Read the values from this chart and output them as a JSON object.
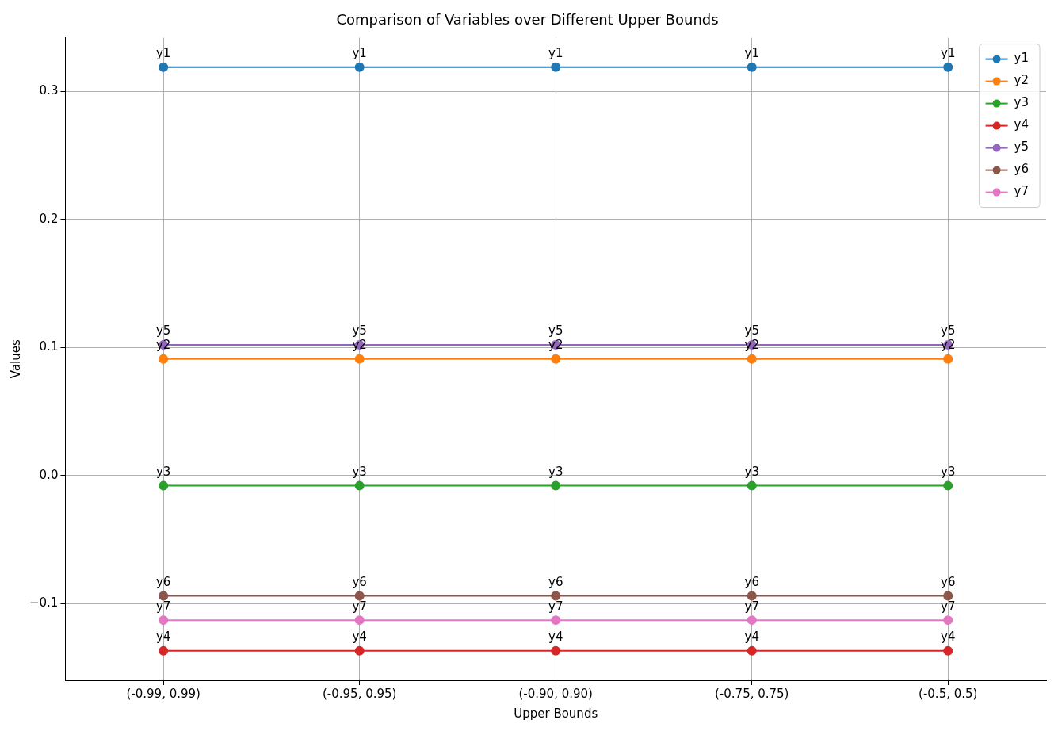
{
  "chart_data": {
    "type": "line",
    "title": "Comparison of Variables over Different Upper Bounds",
    "xlabel": "Upper Bounds",
    "ylabel": "Values",
    "categories": [
      "(-0.99, 0.99)",
      "(-0.95, 0.95)",
      "(-0.90, 0.90)",
      "(-0.75, 0.75)",
      "(-0.5, 0.5)"
    ],
    "series": [
      {
        "name": "y1",
        "color": "#1f77b4",
        "values": [
          0.319,
          0.319,
          0.319,
          0.319,
          0.319
        ]
      },
      {
        "name": "y2",
        "color": "#ff7f0e",
        "values": [
          0.091,
          0.091,
          0.091,
          0.091,
          0.091
        ]
      },
      {
        "name": "y3",
        "color": "#2ca02c",
        "values": [
          -0.008,
          -0.008,
          -0.008,
          -0.008,
          -0.008
        ]
      },
      {
        "name": "y4",
        "color": "#d62728",
        "values": [
          -0.137,
          -0.137,
          -0.137,
          -0.137,
          -0.137
        ]
      },
      {
        "name": "y5",
        "color": "#9467bd",
        "values": [
          0.102,
          0.102,
          0.102,
          0.102,
          0.102
        ]
      },
      {
        "name": "y6",
        "color": "#8c564b",
        "values": [
          -0.094,
          -0.094,
          -0.094,
          -0.094,
          -0.094
        ]
      },
      {
        "name": "y7",
        "color": "#e377c2",
        "values": [
          -0.113,
          -0.113,
          -0.113,
          -0.113,
          -0.113
        ]
      }
    ],
    "ylim": [
      -0.16,
      0.342
    ],
    "yticks": [
      {
        "value": -0.1,
        "label": "−0.1"
      },
      {
        "value": 0,
        "label": "0.0"
      },
      0.1,
      0.2,
      0.3
    ],
    "grid": true,
    "legend": "top right",
    "marker": "circle",
    "line_style": "solid",
    "annotations": [
      {
        "text": "y1",
        "x": "(-0.99, 0.99)",
        "y": 0.319
      },
      {
        "text": "y1",
        "x": "(-0.95, 0.95)",
        "y": 0.319
      },
      {
        "text": "y1",
        "x": "(-0.90, 0.90)",
        "y": 0.319
      },
      {
        "text": "y1",
        "x": "(-0.75, 0.75)",
        "y": 0.319
      },
      {
        "text": "y1",
        "x": "(-0.5, 0.5)",
        "y": 0.319
      },
      {
        "text": "y2",
        "x": "(-0.99, 0.99)",
        "y": 0.091
      },
      {
        "text": "y2",
        "x": "(-0.95, 0.95)",
        "y": 0.091
      },
      {
        "text": "y2",
        "x": "(-0.90, 0.90)",
        "y": 0.091
      },
      {
        "text": "y2",
        "x": "(-0.75, 0.75)",
        "y": 0.091
      },
      {
        "text": "y2",
        "x": "(-0.5, 0.5)",
        "y": 0.091
      },
      {
        "text": "y3",
        "x": "(-0.99, 0.99)",
        "y": -0.008
      },
      {
        "text": "y3",
        "x": "(-0.95, 0.95)",
        "y": -0.008
      },
      {
        "text": "y3",
        "x": "(-0.90, 0.90)",
        "y": -0.008
      },
      {
        "text": "y3",
        "x": "(-0.75, 0.75)",
        "y": -0.008
      },
      {
        "text": "y3",
        "x": "(-0.5, 0.5)",
        "y": -0.008
      },
      {
        "text": "y4",
        "x": "(-0.99, 0.99)",
        "y": -0.137
      },
      {
        "text": "y4",
        "x": "(-0.95, 0.95)",
        "y": -0.137
      },
      {
        "text": "y4",
        "x": "(-0.90, 0.90)",
        "y": -0.137
      },
      {
        "text": "y4",
        "x": "(-0.75, 0.75)",
        "y": -0.137
      },
      {
        "text": "y4",
        "x": "(-0.5, 0.5)",
        "y": -0.137
      },
      {
        "text": "y5",
        "x": "(-0.99, 0.99)",
        "y": 0.102
      },
      {
        "text": "y5",
        "x": "(-0.95, 0.95)",
        "y": 0.102
      },
      {
        "text": "y5",
        "x": "(-0.90, 0.90)",
        "y": 0.102
      },
      {
        "text": "y5",
        "x": "(-0.75, 0.75)",
        "y": 0.102
      },
      {
        "text": "y5",
        "x": "(-0.5, 0.5)",
        "y": 0.102
      },
      {
        "text": "y6",
        "x": "(-0.99, 0.99)",
        "y": -0.094
      },
      {
        "text": "y6",
        "x": "(-0.95, 0.95)",
        "y": -0.094
      },
      {
        "text": "y6",
        "x": "(-0.90, 0.90)",
        "y": -0.094
      },
      {
        "text": "y6",
        "x": "(-0.75, 0.75)",
        "y": -0.094
      },
      {
        "text": "y6",
        "x": "(-0.5, 0.5)",
        "y": -0.094
      },
      {
        "text": "y7",
        "x": "(-0.99, 0.99)",
        "y": -0.113
      },
      {
        "text": "y7",
        "x": "(-0.95, 0.95)",
        "y": -0.113
      },
      {
        "text": "y7",
        "x": "(-0.90, 0.90)",
        "y": -0.113
      },
      {
        "text": "y7",
        "x": "(-0.75, 0.75)",
        "y": -0.113
      },
      {
        "text": "y7",
        "x": "(-0.5, 0.5)",
        "y": -0.113
      }
    ]
  }
}
